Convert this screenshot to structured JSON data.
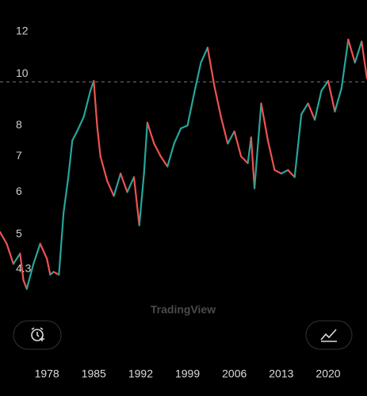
{
  "chart_data": {
    "type": "line",
    "log_scale": true,
    "watermark": "TradingView",
    "up_color": "#26a69a",
    "down_color": "#ef5350",
    "price_line": 9.66,
    "xlim": [
      1971.0,
      2025.8
    ],
    "xticks": [
      1978,
      1985,
      1992,
      1999,
      2006,
      2013,
      2020
    ],
    "ylim": [
      2.9,
      13.76
    ],
    "yticks": [
      12,
      10,
      8,
      7,
      6,
      5,
      4.3
    ],
    "x": [
      1971.0,
      1972,
      1973,
      1974,
      1974.5,
      1975,
      1976,
      1977,
      1978,
      1978.5,
      1979,
      1979.8,
      1980.5,
      1981.2,
      1981.8,
      1982.5,
      1983.5,
      1984.5,
      1985,
      1985.5,
      1986,
      1987,
      1988,
      1989,
      1990,
      1991,
      1991.8,
      1992.5,
      1993,
      1994,
      1995,
      1996,
      1997,
      1998,
      1999,
      2000,
      2001,
      2002,
      2003,
      2004,
      2005,
      2006,
      2007,
      2008,
      2008.5,
      2009,
      2010,
      2011,
      2012,
      2013,
      2014,
      2015,
      2016,
      2017,
      2018,
      2019,
      2020,
      2021,
      2022,
      2023,
      2024,
      2025,
      2025.8
    ],
    "values": [
      5.05,
      4.8,
      4.4,
      4.6,
      4.1,
      3.95,
      4.4,
      4.8,
      4.5,
      4.2,
      4.25,
      4.2,
      5.5,
      6.4,
      7.5,
      7.8,
      8.3,
      9.3,
      9.7,
      8.0,
      7.0,
      6.3,
      5.9,
      6.5,
      6.0,
      6.4,
      5.2,
      6.5,
      8.1,
      7.4,
      7.0,
      6.7,
      7.4,
      7.9,
      8.0,
      9.2,
      10.5,
      11.2,
      9.5,
      8.3,
      7.4,
      7.8,
      7.0,
      6.8,
      7.6,
      6.1,
      8.8,
      7.5,
      6.6,
      6.5,
      6.6,
      6.4,
      8.4,
      8.8,
      8.2,
      9.3,
      9.7,
      8.5,
      9.4,
      11.6,
      10.5,
      11.5,
      9.8
    ]
  }
}
